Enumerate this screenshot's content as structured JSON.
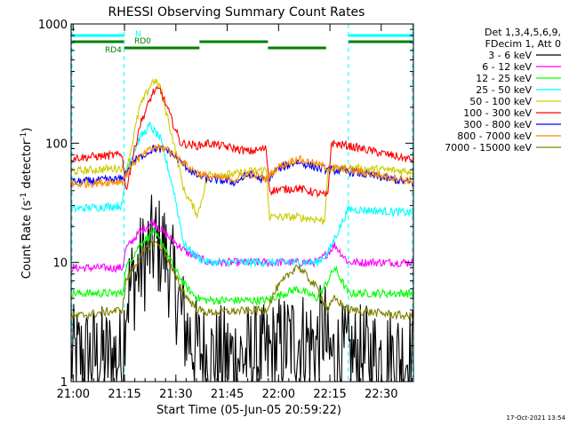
{
  "chart_data": {
    "type": "line",
    "title": "RHESSI Observing Summary Count Rates",
    "xlabel": "Start Time (05-Jun-05 20:59:22)",
    "ylabel_main": "Count Rate (s",
    "ylabel_sup1": "-1",
    "ylabel_mid": " detector",
    "ylabel_sup2": "-1",
    "ylabel_end": ")",
    "yscale": "log",
    "ylim": [
      1,
      1000
    ],
    "xlim_minutes": [
      0,
      100
    ],
    "xticks": [
      {
        "label": "21:00",
        "min": 0.6
      },
      {
        "label": "21:15",
        "min": 15.6
      },
      {
        "label": "21:30",
        "min": 30.6
      },
      {
        "label": "21:45",
        "min": 45.6
      },
      {
        "label": "22:00",
        "min": 60.6
      },
      {
        "label": "22:15",
        "min": 75.6
      },
      {
        "label": "22:30",
        "min": 90.6
      }
    ],
    "yticks": [
      {
        "label": "1",
        "value": 1
      },
      {
        "label": "10",
        "value": 10
      },
      {
        "label": "100",
        "value": 100
      },
      {
        "label": "1000",
        "value": 1000
      }
    ],
    "legend_header": [
      "Det 1,3,4,5,6,9,",
      "FDecim 1, Att 0"
    ],
    "timestamp": "17-Oct-2021 13:54",
    "flags": [
      {
        "label": "N",
        "color": "#00ffff",
        "level": 1,
        "segments": [
          [
            0,
            15.5
          ],
          [
            81,
            100
          ]
        ]
      },
      {
        "label": "RD0",
        "color": "#008000",
        "level": 2,
        "segments": [
          [
            0,
            15.5
          ],
          [
            37.5,
            57.5
          ],
          [
            81,
            100
          ]
        ]
      },
      {
        "label": "RD4",
        "color": "#008000",
        "level": 3,
        "segments": [
          [
            15.5,
            37.5
          ],
          [
            57.5,
            74.5
          ]
        ]
      }
    ],
    "boundaries_minutes": [
      15.5,
      81
    ],
    "series": [
      {
        "name": "3 - 6 keV",
        "color": "#000000",
        "noisy": true,
        "points": [
          [
            0,
            1.6
          ],
          [
            15,
            1.6
          ],
          [
            16,
            5
          ],
          [
            20,
            9
          ],
          [
            24,
            14
          ],
          [
            27,
            13
          ],
          [
            30,
            7
          ],
          [
            33,
            3
          ],
          [
            36,
            2
          ],
          [
            40,
            1.6
          ],
          [
            57,
            1.6
          ],
          [
            60,
            1.9
          ],
          [
            66,
            2.3
          ],
          [
            72,
            2
          ],
          [
            74,
            3
          ],
          [
            75,
            1.6
          ],
          [
            81,
            1.6
          ],
          [
            100,
            1.6
          ]
        ]
      },
      {
        "name": "6 - 12 keV",
        "color": "#ff00ff",
        "noisy": false,
        "points": [
          [
            0,
            9
          ],
          [
            15,
            9
          ],
          [
            16,
            13
          ],
          [
            20,
            18
          ],
          [
            24,
            22
          ],
          [
            27,
            18
          ],
          [
            30,
            15
          ],
          [
            34,
            12
          ],
          [
            37,
            11
          ],
          [
            40,
            10
          ],
          [
            57,
            10
          ],
          [
            60,
            10
          ],
          [
            66,
            10
          ],
          [
            72,
            10
          ],
          [
            75,
            12
          ],
          [
            77,
            14
          ],
          [
            81,
            10
          ],
          [
            100,
            10
          ]
        ]
      },
      {
        "name": "12 - 25 keV",
        "color": "#00ff00",
        "noisy": false,
        "points": [
          [
            0,
            5.5
          ],
          [
            15,
            5.5
          ],
          [
            16,
            9
          ],
          [
            20,
            14
          ],
          [
            24,
            18
          ],
          [
            27,
            14
          ],
          [
            30,
            9
          ],
          [
            34,
            6
          ],
          [
            37,
            5
          ],
          [
            40,
            4.8
          ],
          [
            57,
            4.8
          ],
          [
            60,
            5.2
          ],
          [
            66,
            6
          ],
          [
            72,
            5
          ],
          [
            75,
            7
          ],
          [
            77,
            9
          ],
          [
            81,
            5.5
          ],
          [
            100,
            5.5
          ]
        ]
      },
      {
        "name": "25 - 50 keV",
        "color": "#00ffff",
        "noisy": false,
        "points": [
          [
            0,
            28
          ],
          [
            15,
            30
          ],
          [
            16,
            60
          ],
          [
            20,
            110
          ],
          [
            23,
            140
          ],
          [
            26,
            110
          ],
          [
            30,
            40
          ],
          [
            33,
            14
          ],
          [
            37,
            11
          ],
          [
            40,
            10
          ],
          [
            57,
            10
          ],
          [
            60,
            10
          ],
          [
            66,
            10
          ],
          [
            72,
            10
          ],
          [
            75,
            12
          ],
          [
            77,
            16
          ],
          [
            81,
            28
          ],
          [
            100,
            26
          ]
        ]
      },
      {
        "name": "50 - 100 keV",
        "color": "#cccc00",
        "noisy": false,
        "points": [
          [
            0,
            58
          ],
          [
            15,
            62
          ],
          [
            16,
            55
          ],
          [
            20,
            200
          ],
          [
            24,
            340
          ],
          [
            26,
            300
          ],
          [
            30,
            100
          ],
          [
            33,
            40
          ],
          [
            37,
            25
          ],
          [
            40,
            55
          ],
          [
            48,
            55
          ],
          [
            52,
            58
          ],
          [
            57,
            60
          ],
          [
            58,
            24
          ],
          [
            66,
            24
          ],
          [
            72,
            23
          ],
          [
            74,
            22
          ],
          [
            75,
            60
          ],
          [
            81,
            62
          ],
          [
            100,
            58
          ]
        ]
      },
      {
        "name": "100 - 300 keV",
        "color": "#ff0000",
        "noisy": false,
        "points": [
          [
            0,
            75
          ],
          [
            15,
            80
          ],
          [
            16,
            40
          ],
          [
            20,
            140
          ],
          [
            24,
            270
          ],
          [
            26,
            280
          ],
          [
            28,
            200
          ],
          [
            32,
            100
          ],
          [
            37,
            95
          ],
          [
            40,
            100
          ],
          [
            48,
            90
          ],
          [
            52,
            85
          ],
          [
            57,
            90
          ],
          [
            58,
            40
          ],
          [
            66,
            42
          ],
          [
            72,
            38
          ],
          [
            75,
            36
          ],
          [
            76,
            100
          ],
          [
            81,
            95
          ],
          [
            100,
            72
          ]
        ]
      },
      {
        "name": "300 - 800 keV",
        "color": "#0000ff",
        "noisy": false,
        "points": [
          [
            0,
            47
          ],
          [
            15,
            50
          ],
          [
            18,
            70
          ],
          [
            24,
            90
          ],
          [
            28,
            88
          ],
          [
            32,
            70
          ],
          [
            36,
            55
          ],
          [
            40,
            50
          ],
          [
            48,
            47
          ],
          [
            52,
            55
          ],
          [
            57,
            48
          ],
          [
            60,
            60
          ],
          [
            66,
            70
          ],
          [
            72,
            62
          ],
          [
            75,
            60
          ],
          [
            81,
            58
          ],
          [
            100,
            46
          ]
        ]
      },
      {
        "name": "800 - 7000 keV",
        "color": "#ff8c00",
        "noisy": false,
        "points": [
          [
            0,
            45
          ],
          [
            15,
            48
          ],
          [
            18,
            68
          ],
          [
            24,
            92
          ],
          [
            28,
            90
          ],
          [
            32,
            72
          ],
          [
            36,
            58
          ],
          [
            40,
            52
          ],
          [
            48,
            50
          ],
          [
            52,
            56
          ],
          [
            57,
            50
          ],
          [
            60,
            62
          ],
          [
            66,
            74
          ],
          [
            72,
            66
          ],
          [
            75,
            62
          ],
          [
            81,
            60
          ],
          [
            100,
            48
          ]
        ]
      },
      {
        "name": "7000 - 15000 keV",
        "color": "#808000",
        "noisy": false,
        "points": [
          [
            0,
            3.5
          ],
          [
            15,
            4
          ],
          [
            16,
            7
          ],
          [
            20,
            11
          ],
          [
            24,
            15
          ],
          [
            27,
            13
          ],
          [
            30,
            8
          ],
          [
            34,
            5
          ],
          [
            37,
            4
          ],
          [
            40,
            3.8
          ],
          [
            57,
            4
          ],
          [
            60,
            6
          ],
          [
            66,
            9.5
          ],
          [
            72,
            6
          ],
          [
            75,
            4
          ],
          [
            77,
            5
          ],
          [
            81,
            4
          ],
          [
            100,
            3.5
          ]
        ]
      }
    ]
  }
}
